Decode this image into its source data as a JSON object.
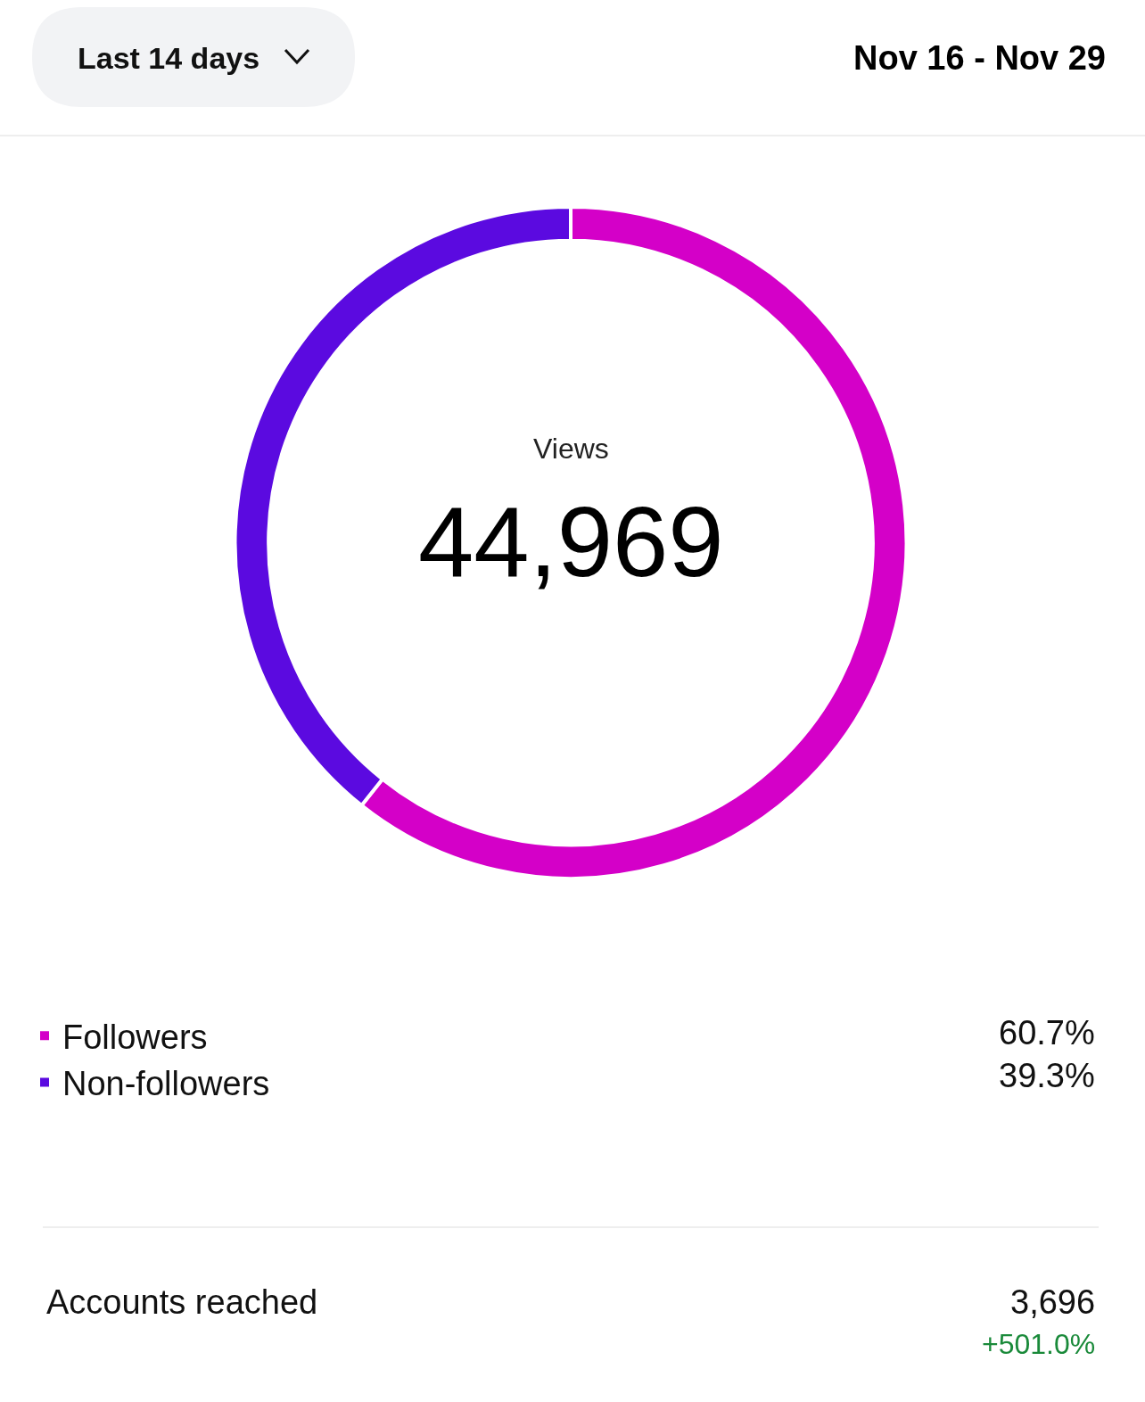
{
  "chart_data": {
    "type": "donut",
    "categories": [
      "Followers",
      "Non-followers"
    ],
    "values": [
      60.7,
      39.3
    ],
    "colors": [
      "#d400c8",
      "#5b0ae0"
    ],
    "value_labels": [
      "60.7%",
      "39.3%"
    ],
    "legend": "bottom",
    "annotations": [
      "Last 14 days",
      "Nov 16 - Nov 29",
      "Views",
      "44,969",
      "Accounts reached",
      "3,696",
      "+501.0%"
    ]
  }
}
